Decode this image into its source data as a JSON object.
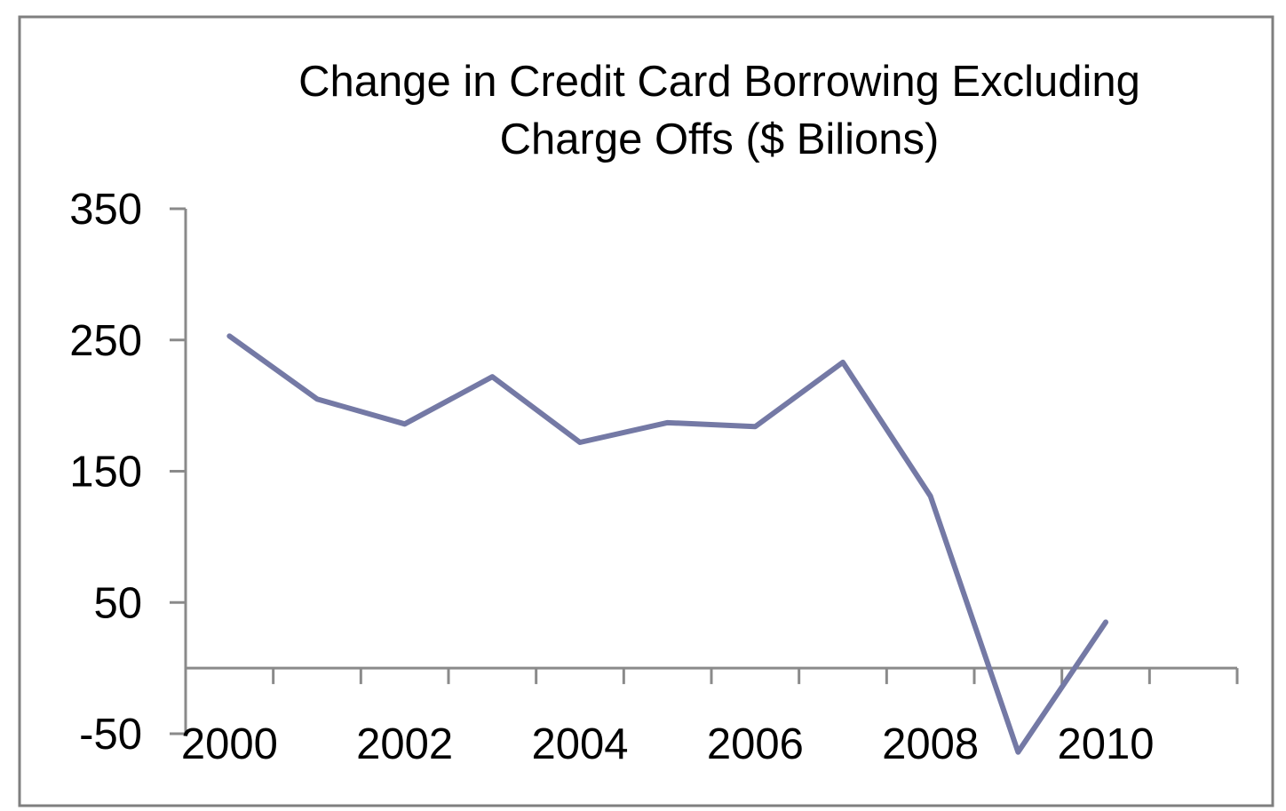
{
  "chart_data": {
    "type": "line",
    "title_lines": [
      "Change in Credit Card Borrowing Excluding",
      "Charge Offs ($ Bilions)"
    ],
    "xlabel": "",
    "ylabel": "",
    "x": [
      2000,
      2001,
      2002,
      2003,
      2004,
      2005,
      2006,
      2007,
      2008,
      2009,
      2010
    ],
    "series": [
      {
        "values": [
          253,
          205,
          186,
          222,
          172,
          187,
          184,
          233,
          131,
          -64,
          35
        ]
      }
    ],
    "y_ticks": [
      "350",
      "250",
      "150",
      "50",
      "-50"
    ],
    "y_tick_values": [
      350,
      250,
      150,
      50,
      -50
    ],
    "x_ticks": [
      "2000",
      "2002",
      "2004",
      "2006",
      "2008",
      "2010"
    ],
    "x_tick_values": [
      2000,
      2002,
      2004,
      2006,
      2008,
      2010
    ],
    "ylim": [
      -50,
      350
    ],
    "xlim": [
      1999.5,
      2011.5
    ],
    "x_axis_crosses_at": 0,
    "grid": false,
    "legend": "none",
    "colors": {
      "line": "#7479a5",
      "axis": "#8a8a8a",
      "frame": "#7f7f7f",
      "text": "#000000"
    }
  }
}
